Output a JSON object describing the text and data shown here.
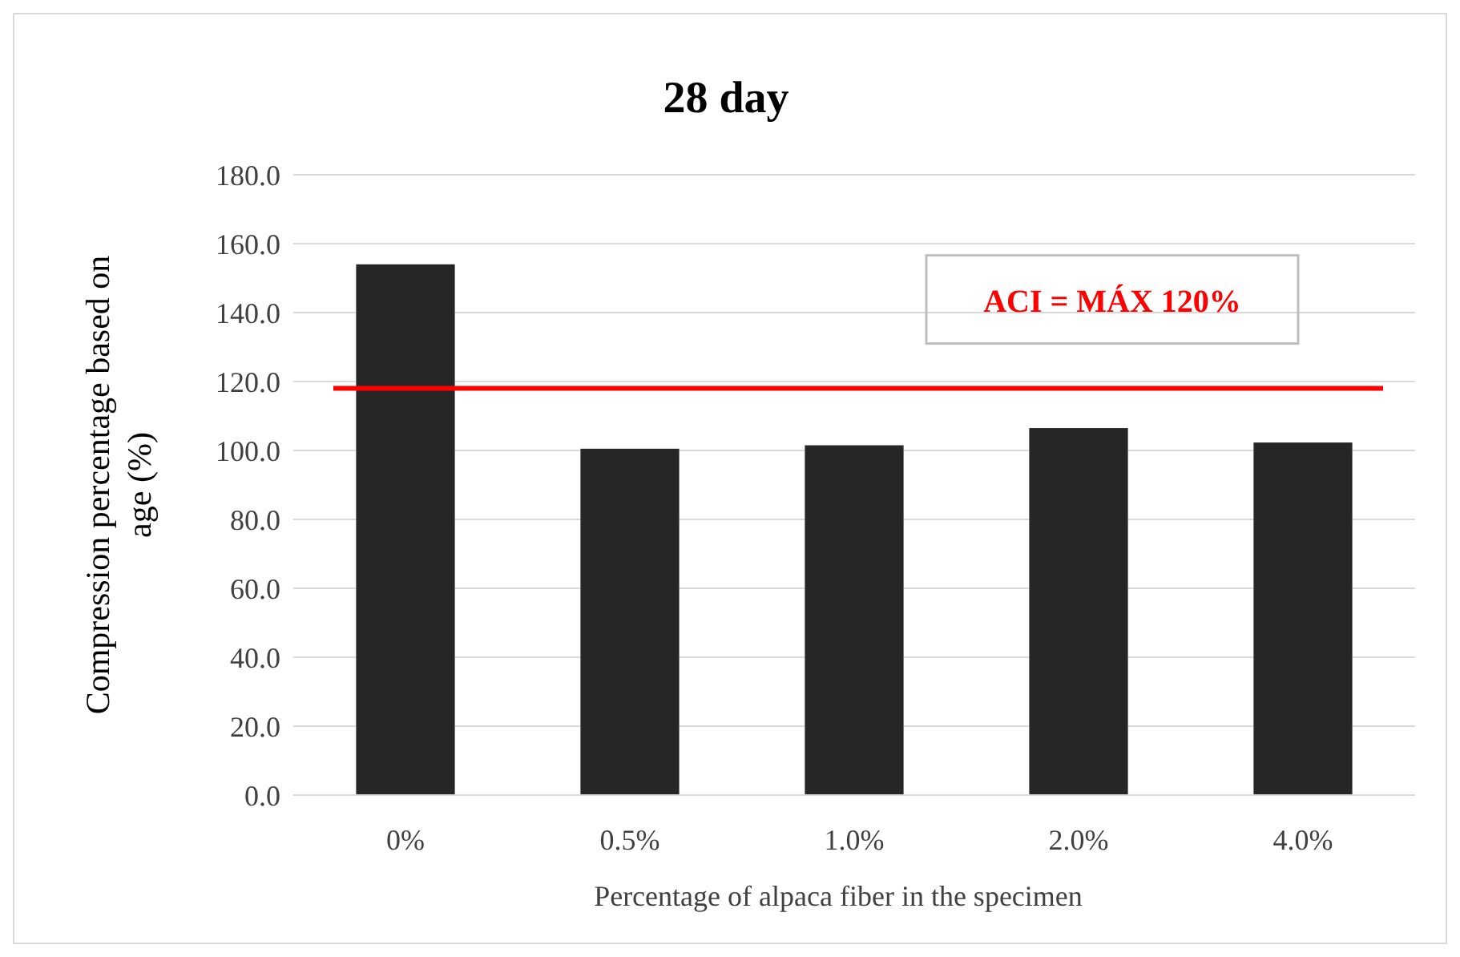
{
  "chart_data": {
    "type": "bar",
    "title": "28 day",
    "xlabel": "Percentage of alpaca fiber in the specimen",
    "ylabel": "Compression percentage  based on age  (%)",
    "categories": [
      "0%",
      "0.5%",
      "1.0%",
      "2.0%",
      "4.0%"
    ],
    "values": [
      154,
      100.5,
      101.5,
      106.5,
      102.3
    ],
    "color": "#262626",
    "ylim": [
      0,
      180
    ],
    "yticks": [
      {
        "value": 0,
        "label": "0.0"
      },
      {
        "value": 20,
        "label": "20.0"
      },
      {
        "value": 40,
        "label": "40.0"
      },
      {
        "value": 60,
        "label": "60.0"
      },
      {
        "value": 80,
        "label": "80.0"
      },
      {
        "value": 100,
        "label": "100.0"
      },
      {
        "value": 120,
        "label": "120.0"
      },
      {
        "value": 140,
        "label": "140.0"
      },
      {
        "value": 160,
        "label": "160.0"
      },
      {
        "value": 180,
        "label": "180.0"
      }
    ],
    "grid": "y",
    "ref_lines": [
      {
        "axis": "y",
        "value": 118,
        "label": "ACI = MÁX 120%",
        "color": "#ff0000"
      }
    ]
  }
}
